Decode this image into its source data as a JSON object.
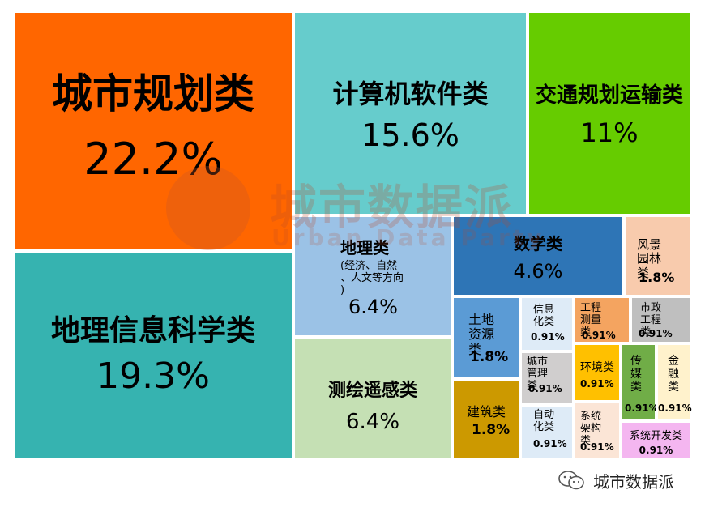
{
  "chart_data": {
    "type": "treemap",
    "unit": "%",
    "items": [
      {
        "label": "城市规划类",
        "value": 22.2,
        "value_text": "22.2%",
        "color": "#ff6600"
      },
      {
        "label": "地理信息科学类",
        "value": 19.3,
        "value_text": "19.3%",
        "color": "#36b3b0"
      },
      {
        "label": "计算机软件类",
        "value": 15.6,
        "value_text": "15.6%",
        "color": "#66cccc"
      },
      {
        "label": "交通规划运输类",
        "value": 11,
        "value_text": "11%",
        "color": "#66cc00"
      },
      {
        "label": "地理类",
        "note": "(经济、自然、人文等方向)",
        "value": 6.4,
        "value_text": "6.4%",
        "color": "#9bc2e6"
      },
      {
        "label": "测绘遥感类",
        "value": 6.4,
        "value_text": "6.4%",
        "color": "#c5e0b4"
      },
      {
        "label": "数学类",
        "value": 4.6,
        "value_text": "4.6%",
        "color": "#2e75b6"
      },
      {
        "label": "风景园林类",
        "value": 1.8,
        "value_text": "1.8%",
        "color": "#f8cbad"
      },
      {
        "label": "土地资源类",
        "value": 1.8,
        "value_text": "1.8%",
        "color": "#5b9bd5"
      },
      {
        "label": "建筑类",
        "value": 1.8,
        "value_text": "1.8%",
        "color": "#cc9900"
      },
      {
        "label": "信息化类",
        "value": 0.91,
        "value_text": "0.91%",
        "color": "#deebf7"
      },
      {
        "label": "城市管理类",
        "value": 0.91,
        "value_text": "0.91%",
        "color": "#d0cece"
      },
      {
        "label": "自动化类",
        "value": 0.91,
        "value_text": "0.91%",
        "color": "#deebf7"
      },
      {
        "label": "工程测量类",
        "value": 0.91,
        "value_text": "0.91%",
        "color": "#f4a460"
      },
      {
        "label": "市政工程类",
        "value": 0.91,
        "value_text": "0.91%",
        "color": "#bfbfbf"
      },
      {
        "label": "环境类",
        "value": 0.91,
        "value_text": "0.91%",
        "color": "#ffc000"
      },
      {
        "label": "传媒类",
        "value": 0.91,
        "value_text": "0.91%",
        "color": "#70ad47"
      },
      {
        "label": "金融类",
        "value": 0.91,
        "value_text": "0.91%",
        "color": "#fff2cc"
      },
      {
        "label": "系统架构类",
        "value": 0.91,
        "value_text": "0.91%",
        "color": "#fbe5d6"
      },
      {
        "label": "系统开发类",
        "value": 0.91,
        "value_text": "0.91%",
        "color": "#f4b6f0"
      }
    ]
  },
  "watermark": {
    "title": "城市数据派",
    "subtitle": "Urban Data Party"
  },
  "footer": {
    "account_name": "城市数据派",
    "icon": "wechat-icon"
  }
}
